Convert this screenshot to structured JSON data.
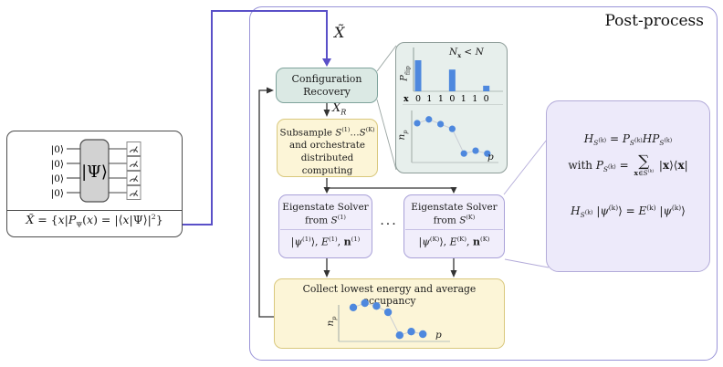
{
  "post_process": {
    "title": "Post-process"
  },
  "colors": {
    "accent_blue": "#4e88de",
    "flow_purple": "#5a50c8",
    "container_border": "#9a94d8",
    "teal_fill": "#dbe9e4",
    "yellow_fill": "#fcf5d7",
    "lavender_fill": "#f1eefb",
    "callout_fill": "#edeafa",
    "scatter_link_gray": "#c9cdd4"
  },
  "left_circuit": {
    "qubits": [
      "|0⟩",
      "|0⟩",
      "|0⟩",
      "|0⟩"
    ],
    "gate_label": "|Ψ⟩",
    "equation_html": "<i>X̃</i> = {<i>x</i>|<i>P</i><sub>Ψ</sub>(<i>x</i>) = |⟨<i>x</i>|Ψ⟩|<sup>2</sup>}"
  },
  "flow": {
    "xtilde_html": "<i>X̃</i>",
    "xr_html": "<i>X</i><sub><i>R</i></sub>",
    "config": {
      "line1": "Configuration",
      "line2": "Recovery"
    },
    "subsample_html": "Subsample <i>S</i><sup>(1)</sup>…<i>S</i><sup>(K)</sup><br>and orchestrate<br>distributed computing",
    "solver1": {
      "title_html": "Eigenstate Solver<br>from <i>S</i><sup>(1)</sup>",
      "output_html": "|<i>ψ</i><sup>(1)</sup>⟩, <i>E</i><sup>(1)</sup>, <b>n</b><sup>(1)</sup>"
    },
    "solverK": {
      "title_html": "Eigenstate Solver<br>from <i>S</i><sup>(K)</sup>",
      "output_html": "|<i>ψ</i><sup>(K)</sup>⟩, <i>E</i><sup>(K)</sup>, <b>n</b><sup>(K)</sup>"
    },
    "dots": "···",
    "collect_title": "Collect lowest energy and average occupancy"
  },
  "callout": {
    "eq1_html": "<i>H</i><sub><i>S</i><sup>(k)</sup></sub> = <i>P</i><sub><i>S</i><sup>(k)</sup></sub><i>H</i><i>P</i><sub><i>S</i><sup>(k)</sup></sub>",
    "eq2_html": "with <i>P</i><sub><i>S</i><sup>(k)</sup></sub> = <span class='sum'><span class='sg'>∑</span><span class='ss'><b>x</b>∈<i>S</i><sup>(k)</sup></span></span> |<b>x</b>⟩⟨<b>x</b>|",
    "eq3_html": "<i>H</i><sub><i>S</i><sup>(k)</sup></sub> |<i>ψ</i><sup>(k)</sup>⟩ = <i>E</i><sup>(k)</sup> |<i>ψ</i><sup>(k)</sup>⟩"
  },
  "inset_labels": {
    "bar_title_html": "<i>N</i><sub><b>x</b></sub> &lt; <i>N</i>",
    "bar_ylabel_html": "<i>P</i><sub>flip</sub>",
    "scatter_ylabel_html": "<i>n</i><sub><i>p</i></sub>",
    "scatter_xlabel_html": "<i>p</i>"
  },
  "collect_labels": {
    "ylabel_html": "<i>n</i><sub><i>p</i></sub>",
    "xlabel_html": "<i>p</i>"
  },
  "chart_data": [
    {
      "type": "bar",
      "title": "N_x < N",
      "ylabel": "P_flip",
      "xlabel": "x",
      "categories": [
        "0",
        "1",
        "1",
        "0",
        "1",
        "1",
        "0"
      ],
      "values": [
        1.0,
        0,
        0,
        0.7,
        0,
        0,
        0.18
      ],
      "ylim": [
        0,
        1
      ]
    },
    {
      "type": "scatter",
      "ylabel": "n_p",
      "xlabel": "p",
      "x": [
        1,
        2,
        3,
        4,
        5,
        6,
        7
      ],
      "y": [
        0.79,
        0.87,
        0.77,
        0.67,
        0.15,
        0.21,
        0.15
      ]
    },
    {
      "type": "scatter",
      "ylabel": "n_p",
      "xlabel": "p",
      "x": [
        1,
        2,
        3,
        4,
        5,
        6,
        7
      ],
      "y": [
        0.88,
        1.0,
        0.92,
        0.75,
        0.12,
        0.22,
        0.15
      ]
    }
  ]
}
